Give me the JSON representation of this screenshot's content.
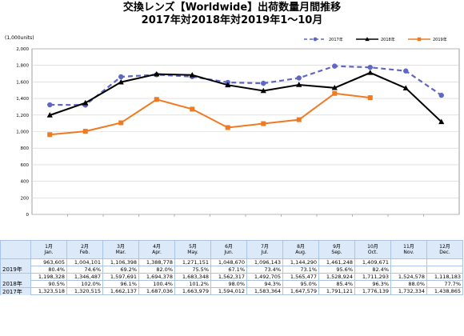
{
  "title_line1": "交換レンズ【Worldwide】出荷数量月間推移",
  "title_line2": "2017年対2018年対2019年1～10月",
  "chart_data": {
    "type": "line",
    "ylabel": "(1,000units)",
    "ylim": [
      0,
      2000
    ],
    "yticks": [
      "0",
      "200",
      "400",
      "600",
      "800",
      "1,000",
      "1,200",
      "1,400",
      "1,600",
      "1,800",
      "2,000"
    ],
    "categories": [
      "1月 Jan.",
      "2月 Feb.",
      "3月 Mar.",
      "4月 Apr.",
      "5月 May.",
      "6月 Jun.",
      "7月 Jul.",
      "8月 Aug.",
      "9月 Sep.",
      "10月 Oct.",
      "11月 Nov.",
      "12月 Dec."
    ],
    "series": [
      {
        "name": "2017年",
        "color": "#5f67c4",
        "style": "dashed",
        "marker": "circle",
        "values": [
          1323.518,
          1320.515,
          1662.137,
          1687.036,
          1663.979,
          1594.012,
          1583.364,
          1647.579,
          1791.121,
          1776.139,
          1732.334,
          1438.865
        ]
      },
      {
        "name": "2018年",
        "color": "#000000",
        "style": "solid",
        "marker": "triangle",
        "values": [
          1198.328,
          1346.487,
          1597.691,
          1694.378,
          1683.348,
          1562.317,
          1492.705,
          1565.477,
          1528.924,
          1711.293,
          1524.578,
          1118.183
        ]
      },
      {
        "name": "2019年",
        "color": "#ef7a22",
        "style": "solid",
        "marker": "square",
        "values": [
          963.605,
          1004.101,
          1106.398,
          1388.778,
          1271.151,
          1048.67,
          1096.143,
          1144.29,
          1461.248,
          1409.671,
          null,
          null
        ]
      }
    ],
    "legend_position": "top-right"
  },
  "table": {
    "months": [
      {
        "jp": "1月",
        "en": "Jan."
      },
      {
        "jp": "2月",
        "en": "Feb."
      },
      {
        "jp": "3月",
        "en": "Mar."
      },
      {
        "jp": "4月",
        "en": "Apr."
      },
      {
        "jp": "5月",
        "en": "May."
      },
      {
        "jp": "6月",
        "en": "Jun."
      },
      {
        "jp": "7月",
        "en": "Jul."
      },
      {
        "jp": "8月",
        "en": "Aug."
      },
      {
        "jp": "9月",
        "en": "Sep."
      },
      {
        "jp": "10月",
        "en": "Oct."
      },
      {
        "jp": "11月",
        "en": "Nov."
      },
      {
        "jp": "12月",
        "en": "Dec."
      }
    ],
    "rows": [
      {
        "label": "2019年",
        "values": [
          "963,605",
          "1,004,101",
          "1,106,398",
          "1,388,778",
          "1,271,151",
          "1,048,670",
          "1,096,143",
          "1,144,290",
          "1,461,248",
          "1,409,671",
          "",
          ""
        ],
        "yoy": [
          "80.4%",
          "74.6%",
          "69.2%",
          "82.0%",
          "75.5%",
          "67.1%",
          "73.4%",
          "73.1%",
          "95.6%",
          "82.4%",
          "",
          ""
        ]
      },
      {
        "label": "2018年",
        "values": [
          "1,198,328",
          "1,346,487",
          "1,597,691",
          "1,694,378",
          "1,683,348",
          "1,562,317",
          "1,492,705",
          "1,565,477",
          "1,528,924",
          "1,711,293",
          "1,524,578",
          "1,118,183"
        ],
        "yoy": [
          "90.5%",
          "102.0%",
          "96.1%",
          "100.4%",
          "101.2%",
          "98.0%",
          "94.3%",
          "95.0%",
          "85.4%",
          "96.3%",
          "88.0%",
          "77.7%"
        ]
      },
      {
        "label": "2017年",
        "values": [
          "1,323,518",
          "1,320,515",
          "1,662,137",
          "1,687,036",
          "1,663,979",
          "1,594,012",
          "1,583,364",
          "1,647,579",
          "1,791,121",
          "1,776,139",
          "1,732,334",
          "1,438,865"
        ],
        "yoy": []
      }
    ]
  }
}
